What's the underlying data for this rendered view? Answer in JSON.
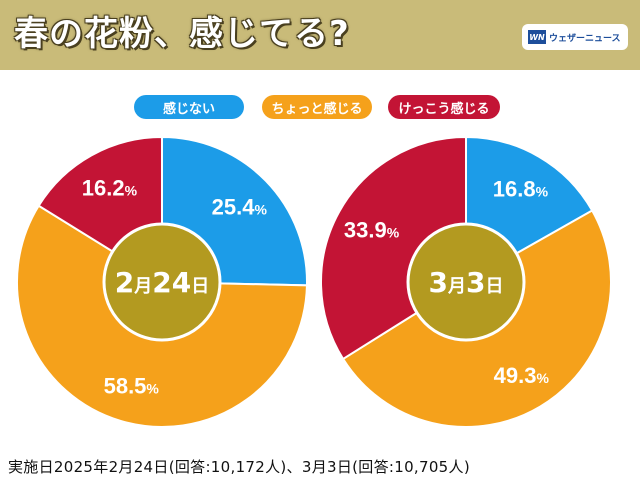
{
  "title": "春の花粉、感じてる?",
  "logo": {
    "mark": "WN",
    "text": "ウェザーニュース"
  },
  "legend": [
    {
      "label": "感じない",
      "color": "#1c9ce8"
    },
    {
      "label": "ちょっと感じる",
      "color": "#f5a11b"
    },
    {
      "label": "けっこう感じる",
      "color": "#c31435"
    }
  ],
  "chart_data": [
    {
      "type": "pie",
      "center_label": "2月24日",
      "categories": [
        "感じない",
        "ちょっと感じる",
        "けっこう感じる"
      ],
      "values": [
        25.4,
        58.5,
        16.2
      ],
      "value_labels": [
        "25.4",
        "58.5",
        "16.2"
      ],
      "unit": "%",
      "colors": [
        "#1c9ce8",
        "#f5a11b",
        "#c31435"
      ]
    },
    {
      "type": "pie",
      "center_label": "3月3日",
      "categories": [
        "感じない",
        "ちょっと感じる",
        "けっこう感じる"
      ],
      "values": [
        16.8,
        49.3,
        33.9
      ],
      "value_labels": [
        "16.8",
        "49.3",
        "33.9"
      ],
      "unit": "%",
      "colors": [
        "#1c9ce8",
        "#f5a11b",
        "#c31435"
      ]
    }
  ],
  "footer": "実施日2025年2月24日(回答:10,172人)、3月3日(回答:10,705人)",
  "colors": {
    "header_bg": "#c9bb79",
    "center_circle": "#b39a20"
  }
}
